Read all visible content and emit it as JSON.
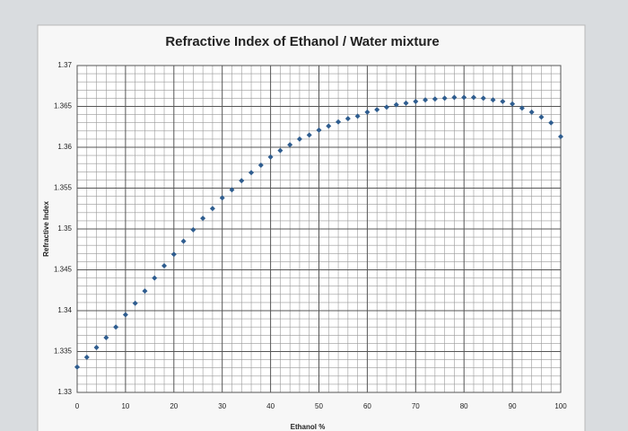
{
  "chart_data": {
    "type": "scatter",
    "title": "Refractive Index of Ethanol / Water mixture",
    "x_label": "Ethanol %",
    "y_label": "Refractive Index",
    "series": [
      {
        "color": "#2f5d8f",
        "x": [
          0,
          2,
          4,
          6,
          8,
          10,
          12,
          14,
          16,
          18,
          20,
          22,
          24,
          26,
          28,
          30,
          32,
          34,
          36,
          38,
          40,
          42,
          44,
          46,
          48,
          50,
          52,
          54,
          56,
          58,
          60,
          62,
          64,
          66,
          68,
          70,
          72,
          74,
          76,
          78,
          80,
          82,
          84,
          86,
          88,
          90,
          92,
          94,
          96,
          98,
          100
        ],
        "values": [
          1.3331,
          1.3343,
          1.3355,
          1.3367,
          1.338,
          1.3395,
          1.3409,
          1.3424,
          1.344,
          1.3455,
          1.3469,
          1.3485,
          1.3499,
          1.3513,
          1.3525,
          1.3538,
          1.3548,
          1.3559,
          1.3569,
          1.3578,
          1.3588,
          1.3596,
          1.3603,
          1.361,
          1.3615,
          1.3621,
          1.3626,
          1.3631,
          1.3635,
          1.3638,
          1.3643,
          1.3646,
          1.3649,
          1.3652,
          1.3654,
          1.3656,
          1.3658,
          1.3659,
          1.366,
          1.3661,
          1.3661,
          1.3661,
          1.366,
          1.3658,
          1.3656,
          1.3653,
          1.3648,
          1.3643,
          1.3637,
          1.363,
          1.3613
        ]
      }
    ],
    "xlim": [
      0,
      100
    ],
    "xticks": [
      0,
      10,
      20,
      30,
      40,
      50,
      60,
      70,
      80,
      90,
      100
    ],
    "ylim": [
      1.33,
      1.37
    ],
    "yticks": [
      1.33,
      1.335,
      1.34,
      1.345,
      1.35,
      1.355,
      1.36,
      1.365,
      1.37
    ],
    "grid": true,
    "minor_grid": true
  }
}
